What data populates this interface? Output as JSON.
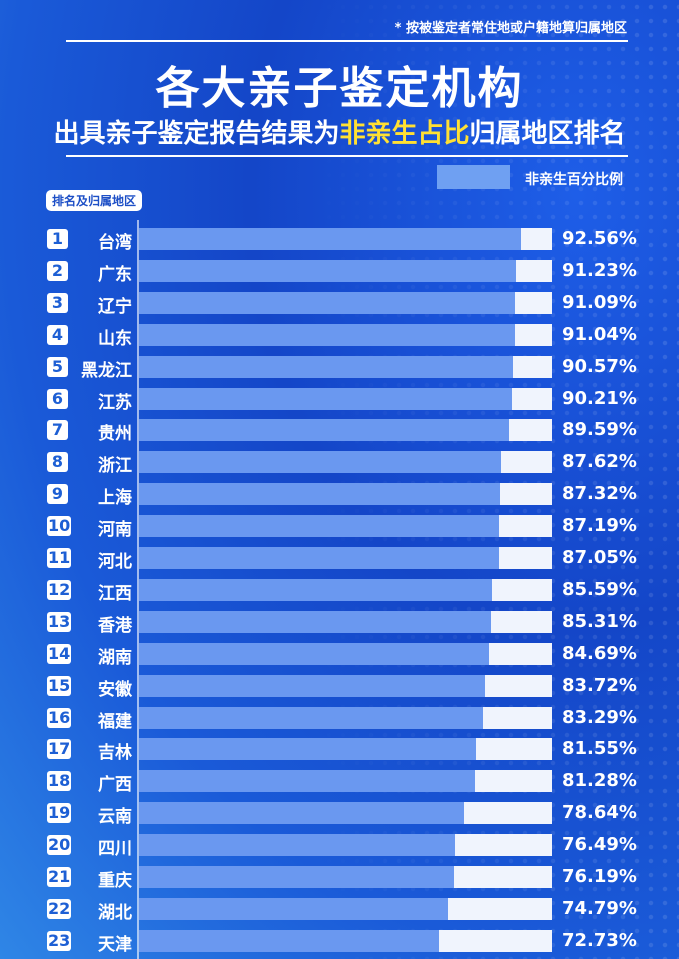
{
  "header": {
    "note": "* 按被鉴定者常住地或户籍地算归属地区",
    "title": "各大亲子鉴定机构",
    "subtitle_pre": "出具亲子鉴定报告结果为",
    "subtitle_highlight": "非亲生占比",
    "subtitle_post": "归属地区排名"
  },
  "colors": {
    "bar": "#6a98f0",
    "track": "#f0f4fd",
    "highlight": "#ffe033",
    "background": "#1446c8"
  },
  "chart_data": {
    "type": "bar",
    "orientation": "horizontal",
    "legend": "非亲生百分比例",
    "legend_placement": "top-right",
    "ylabel": "排名及归属地区",
    "xlim": [
      0,
      100
    ],
    "categories": [
      "台湾",
      "广东",
      "辽宁",
      "山东",
      "黑龙江",
      "江苏",
      "贵州",
      "浙江",
      "上海",
      "河南",
      "河北",
      "江西",
      "香港",
      "湖南",
      "安徽",
      "福建",
      "吉林",
      "广西",
      "云南",
      "四川",
      "重庆",
      "湖北",
      "天津"
    ],
    "ranks": [
      "1",
      "2",
      "3",
      "4",
      "5",
      "6",
      "7",
      "8",
      "9",
      "10",
      "11",
      "12",
      "13",
      "14",
      "15",
      "16",
      "17",
      "18",
      "19",
      "20",
      "21",
      "22",
      "23"
    ],
    "values": [
      92.56,
      91.23,
      91.09,
      91.04,
      90.57,
      90.21,
      89.59,
      87.62,
      87.32,
      87.19,
      87.05,
      85.59,
      85.31,
      84.69,
      83.72,
      83.29,
      81.55,
      81.28,
      78.64,
      76.49,
      76.19,
      74.79,
      72.73
    ],
    "labels": [
      "92.56%",
      "91.23%",
      "91.09%",
      "91.04%",
      "90.57%",
      "90.21%",
      "89.59%",
      "87.62%",
      "87.32%",
      "87.19%",
      "87.05%",
      "85.59%",
      "85.31%",
      "84.69%",
      "83.72%",
      "83.29%",
      "81.55%",
      "81.28%",
      "78.64%",
      "76.49%",
      "76.19%",
      "74.79%",
      "72.73%"
    ]
  }
}
